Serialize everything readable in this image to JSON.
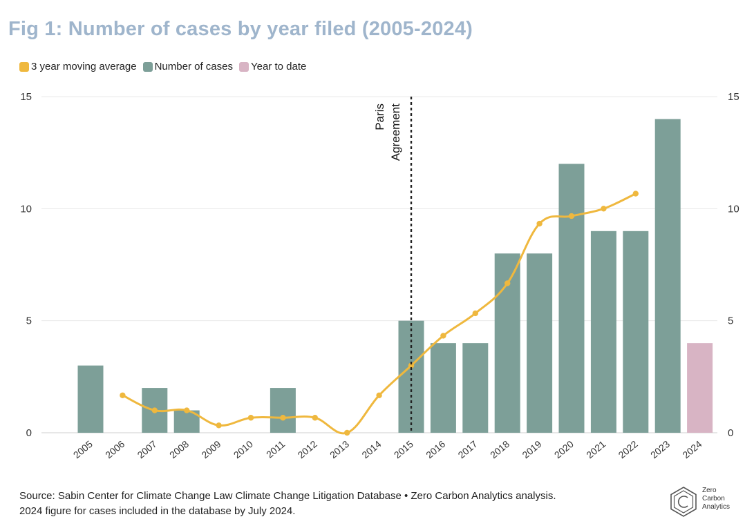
{
  "title": "Fig 1: Number of cases by year filed (2005-2024)",
  "legend": [
    {
      "label": "3 year moving average",
      "color": "#efb83e"
    },
    {
      "label": "Number of cases",
      "color": "#7d9f98"
    },
    {
      "label": "Year to date",
      "color": "#d8b4c4"
    }
  ],
  "chart_data": {
    "type": "bar",
    "categories": [
      "2005",
      "2006",
      "2007",
      "2008",
      "2009",
      "2010",
      "2011",
      "2012",
      "2013",
      "2014",
      "2015",
      "2016",
      "2017",
      "2018",
      "2019",
      "2020",
      "2021",
      "2022",
      "2023",
      "2024"
    ],
    "series": [
      {
        "name": "Number of cases",
        "type": "bar",
        "color": "#7d9f98",
        "values": [
          3,
          0,
          2,
          1,
          0,
          0,
          2,
          0,
          0,
          0,
          5,
          4,
          4,
          8,
          8,
          12,
          9,
          9,
          14,
          null
        ]
      },
      {
        "name": "Year to date",
        "type": "bar",
        "color": "#d8b4c4",
        "values": [
          null,
          null,
          null,
          null,
          null,
          null,
          null,
          null,
          null,
          null,
          null,
          null,
          null,
          null,
          null,
          null,
          null,
          null,
          null,
          4
        ]
      },
      {
        "name": "3 year moving average",
        "type": "line",
        "color": "#efb83e",
        "values": [
          null,
          1.67,
          1.0,
          1.0,
          0.33,
          0.67,
          0.67,
          0.67,
          0.0,
          1.67,
          3.0,
          4.33,
          5.33,
          6.67,
          9.33,
          9.67,
          10.0,
          10.67,
          null,
          null
        ]
      }
    ],
    "ylim": [
      0,
      15
    ],
    "yticks": [
      0,
      5,
      10,
      15
    ],
    "right_axis": true,
    "grid": true,
    "legend_position": "top-left",
    "annotation": {
      "x": "2015",
      "lines": [
        "Paris",
        "Agreement"
      ],
      "style": "dashed"
    }
  },
  "footer": {
    "line1": "Source: Sabin Center for Climate Change Law Climate Change Litigation Database • Zero Carbon Analytics analysis.",
    "line2": "2024 figure for cases included in the database by July 2024."
  },
  "logo": {
    "lines": [
      "Zero",
      "Carbon",
      "Analytics"
    ],
    "icon": "hexagon-c-icon"
  }
}
